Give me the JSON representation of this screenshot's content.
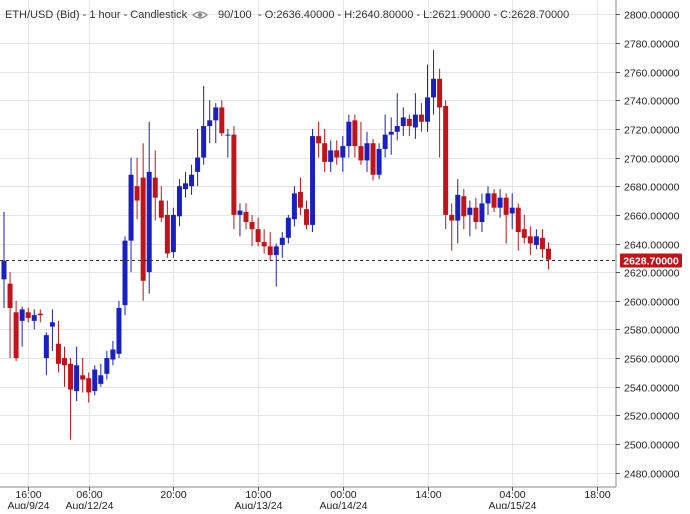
{
  "header": {
    "symbol": "ETH/USD (Bid) - 1 hour - Candlestick",
    "visibility": "90/100",
    "ohlc": "- O:2636.40000 - H:2640.80000 - L:2621.90000 - C:2628.70000"
  },
  "current_price_label": "2628.70000",
  "colors": {
    "up": "#1a1fbf",
    "down": "#c0141a",
    "grid": "#e6e6e6",
    "axis": "#555555",
    "price_tag": "#c0141a"
  },
  "chart_data": {
    "type": "candlestick",
    "title": "ETH/USD (Bid) - 1 hour - Candlestick",
    "ylim": [
      2470,
      2810
    ],
    "y_ticks": [
      "2800.00000",
      "2780.00000",
      "2760.00000",
      "2740.00000",
      "2720.00000",
      "2700.00000",
      "2680.00000",
      "2660.00000",
      "2640.00000",
      "2620.00000",
      "2600.00000",
      "2580.00000",
      "2560.00000",
      "2540.00000",
      "2520.00000",
      "2500.00000",
      "2480.00000"
    ],
    "y_tick_values": [
      2800,
      2780,
      2760,
      2740,
      2720,
      2700,
      2680,
      2660,
      2640,
      2620,
      2600,
      2580,
      2560,
      2540,
      2520,
      2500,
      2480
    ],
    "x_ticks": [
      {
        "time": "16:00",
        "date": "Aug/9/24",
        "index": 4
      },
      {
        "time": "06:00",
        "date": "Aug/12/24",
        "index": 14
      },
      {
        "time": "20:00",
        "date": "",
        "index": 28
      },
      {
        "time": "10:00",
        "date": "Aug/13/24",
        "index": 42
      },
      {
        "time": "00:00",
        "date": "Aug/14/24",
        "index": 56
      },
      {
        "time": "14:00",
        "date": "",
        "index": 70
      },
      {
        "time": "04:00",
        "date": "Aug/15/24",
        "index": 84
      },
      {
        "time": "18:00",
        "date": "",
        "index": 98
      }
    ],
    "last_close": 2628.7,
    "candles": [
      {
        "o": 2615,
        "h": 2662,
        "l": 2595,
        "c": 2628
      },
      {
        "o": 2612,
        "h": 2620,
        "l": 2560,
        "c": 2595
      },
      {
        "o": 2592,
        "h": 2600,
        "l": 2558,
        "c": 2560
      },
      {
        "o": 2586,
        "h": 2596,
        "l": 2568,
        "c": 2594
      },
      {
        "o": 2592,
        "h": 2595,
        "l": 2585,
        "c": 2588
      },
      {
        "o": 2586,
        "h": 2594,
        "l": 2580,
        "c": 2590
      },
      {
        "o": 2591,
        "h": 2594,
        "l": 2585,
        "c": 2590
      },
      {
        "o": 2560,
        "h": 2578,
        "l": 2548,
        "c": 2576
      },
      {
        "o": 2582,
        "h": 2594,
        "l": 2565,
        "c": 2585
      },
      {
        "o": 2570,
        "h": 2586,
        "l": 2550,
        "c": 2556
      },
      {
        "o": 2560,
        "h": 2568,
        "l": 2540,
        "c": 2555
      },
      {
        "o": 2556,
        "h": 2560,
        "l": 2503,
        "c": 2538
      },
      {
        "o": 2537,
        "h": 2568,
        "l": 2530,
        "c": 2555
      },
      {
        "o": 2548,
        "h": 2560,
        "l": 2536,
        "c": 2545
      },
      {
        "o": 2546,
        "h": 2550,
        "l": 2529,
        "c": 2536
      },
      {
        "o": 2537,
        "h": 2555,
        "l": 2534,
        "c": 2552
      },
      {
        "o": 2542,
        "h": 2556,
        "l": 2540,
        "c": 2548
      },
      {
        "o": 2549,
        "h": 2565,
        "l": 2545,
        "c": 2560
      },
      {
        "o": 2559,
        "h": 2572,
        "l": 2555,
        "c": 2566
      },
      {
        "o": 2563,
        "h": 2600,
        "l": 2560,
        "c": 2595
      },
      {
        "o": 2597,
        "h": 2645,
        "l": 2590,
        "c": 2642
      },
      {
        "o": 2642,
        "h": 2700,
        "l": 2620,
        "c": 2688
      },
      {
        "o": 2680,
        "h": 2700,
        "l": 2657,
        "c": 2670
      },
      {
        "o": 2686,
        "h": 2710,
        "l": 2600,
        "c": 2614
      },
      {
        "o": 2620,
        "h": 2725,
        "l": 2605,
        "c": 2690
      },
      {
        "o": 2686,
        "h": 2705,
        "l": 2656,
        "c": 2672
      },
      {
        "o": 2670,
        "h": 2680,
        "l": 2655,
        "c": 2658
      },
      {
        "o": 2660,
        "h": 2670,
        "l": 2630,
        "c": 2633
      },
      {
        "o": 2634,
        "h": 2665,
        "l": 2630,
        "c": 2660
      },
      {
        "o": 2659,
        "h": 2685,
        "l": 2652,
        "c": 2680
      },
      {
        "o": 2678,
        "h": 2690,
        "l": 2672,
        "c": 2682
      },
      {
        "o": 2680,
        "h": 2695,
        "l": 2674,
        "c": 2688
      },
      {
        "o": 2690,
        "h": 2720,
        "l": 2680,
        "c": 2700
      },
      {
        "o": 2700,
        "h": 2750,
        "l": 2695,
        "c": 2722
      },
      {
        "o": 2722,
        "h": 2740,
        "l": 2710,
        "c": 2726
      },
      {
        "o": 2726,
        "h": 2738,
        "l": 2710,
        "c": 2735
      },
      {
        "o": 2735,
        "h": 2740,
        "l": 2715,
        "c": 2717
      },
      {
        "o": 2716,
        "h": 2720,
        "l": 2700,
        "c": 2716
      },
      {
        "o": 2716,
        "h": 2722,
        "l": 2650,
        "c": 2660
      },
      {
        "o": 2660,
        "h": 2668,
        "l": 2645,
        "c": 2663
      },
      {
        "o": 2662,
        "h": 2668,
        "l": 2650,
        "c": 2655
      },
      {
        "o": 2655,
        "h": 2660,
        "l": 2638,
        "c": 2650
      },
      {
        "o": 2650,
        "h": 2658,
        "l": 2638,
        "c": 2641
      },
      {
        "o": 2641,
        "h": 2650,
        "l": 2633,
        "c": 2638
      },
      {
        "o": 2638,
        "h": 2648,
        "l": 2628,
        "c": 2632
      },
      {
        "o": 2632,
        "h": 2640,
        "l": 2610,
        "c": 2638
      },
      {
        "o": 2639,
        "h": 2648,
        "l": 2630,
        "c": 2644
      },
      {
        "o": 2644,
        "h": 2660,
        "l": 2640,
        "c": 2658
      },
      {
        "o": 2657,
        "h": 2680,
        "l": 2652,
        "c": 2675
      },
      {
        "o": 2676,
        "h": 2686,
        "l": 2660,
        "c": 2665
      },
      {
        "o": 2664,
        "h": 2670,
        "l": 2650,
        "c": 2653
      },
      {
        "o": 2653,
        "h": 2720,
        "l": 2648,
        "c": 2715
      },
      {
        "o": 2715,
        "h": 2725,
        "l": 2700,
        "c": 2710
      },
      {
        "o": 2710,
        "h": 2720,
        "l": 2690,
        "c": 2697
      },
      {
        "o": 2697,
        "h": 2712,
        "l": 2690,
        "c": 2705
      },
      {
        "o": 2705,
        "h": 2712,
        "l": 2695,
        "c": 2700
      },
      {
        "o": 2700,
        "h": 2715,
        "l": 2690,
        "c": 2708
      },
      {
        "o": 2708,
        "h": 2730,
        "l": 2700,
        "c": 2725
      },
      {
        "o": 2726,
        "h": 2730,
        "l": 2700,
        "c": 2708
      },
      {
        "o": 2708,
        "h": 2725,
        "l": 2695,
        "c": 2698
      },
      {
        "o": 2698,
        "h": 2718,
        "l": 2690,
        "c": 2710
      },
      {
        "o": 2710,
        "h": 2713,
        "l": 2684,
        "c": 2688
      },
      {
        "o": 2688,
        "h": 2710,
        "l": 2685,
        "c": 2706
      },
      {
        "o": 2706,
        "h": 2730,
        "l": 2700,
        "c": 2716
      },
      {
        "o": 2716,
        "h": 2728,
        "l": 2702,
        "c": 2718
      },
      {
        "o": 2718,
        "h": 2745,
        "l": 2712,
        "c": 2722
      },
      {
        "o": 2722,
        "h": 2735,
        "l": 2715,
        "c": 2728
      },
      {
        "o": 2727,
        "h": 2730,
        "l": 2715,
        "c": 2722
      },
      {
        "o": 2721,
        "h": 2745,
        "l": 2713,
        "c": 2730
      },
      {
        "o": 2730,
        "h": 2738,
        "l": 2718,
        "c": 2725
      },
      {
        "o": 2725,
        "h": 2765,
        "l": 2718,
        "c": 2742
      },
      {
        "o": 2742,
        "h": 2775,
        "l": 2730,
        "c": 2755
      },
      {
        "o": 2755,
        "h": 2762,
        "l": 2700,
        "c": 2735
      },
      {
        "o": 2736,
        "h": 2740,
        "l": 2650,
        "c": 2660
      },
      {
        "o": 2660,
        "h": 2668,
        "l": 2635,
        "c": 2656
      },
      {
        "o": 2656,
        "h": 2685,
        "l": 2640,
        "c": 2674
      },
      {
        "o": 2673,
        "h": 2678,
        "l": 2650,
        "c": 2659
      },
      {
        "o": 2660,
        "h": 2670,
        "l": 2645,
        "c": 2665
      },
      {
        "o": 2665,
        "h": 2672,
        "l": 2650,
        "c": 2655
      },
      {
        "o": 2655,
        "h": 2675,
        "l": 2648,
        "c": 2668
      },
      {
        "o": 2668,
        "h": 2680,
        "l": 2660,
        "c": 2675
      },
      {
        "o": 2675,
        "h": 2678,
        "l": 2662,
        "c": 2665
      },
      {
        "o": 2665,
        "h": 2678,
        "l": 2658,
        "c": 2672
      },
      {
        "o": 2672,
        "h": 2675,
        "l": 2640,
        "c": 2660
      },
      {
        "o": 2661,
        "h": 2675,
        "l": 2650,
        "c": 2665
      },
      {
        "o": 2665,
        "h": 2668,
        "l": 2635,
        "c": 2648
      },
      {
        "o": 2650,
        "h": 2660,
        "l": 2640,
        "c": 2644
      },
      {
        "o": 2645,
        "h": 2652,
        "l": 2632,
        "c": 2640
      },
      {
        "o": 2639,
        "h": 2650,
        "l": 2636,
        "c": 2645
      },
      {
        "o": 2644,
        "h": 2650,
        "l": 2630,
        "c": 2636
      },
      {
        "o": 2636.4,
        "h": 2640.8,
        "l": 2621.9,
        "c": 2628.7
      }
    ]
  }
}
